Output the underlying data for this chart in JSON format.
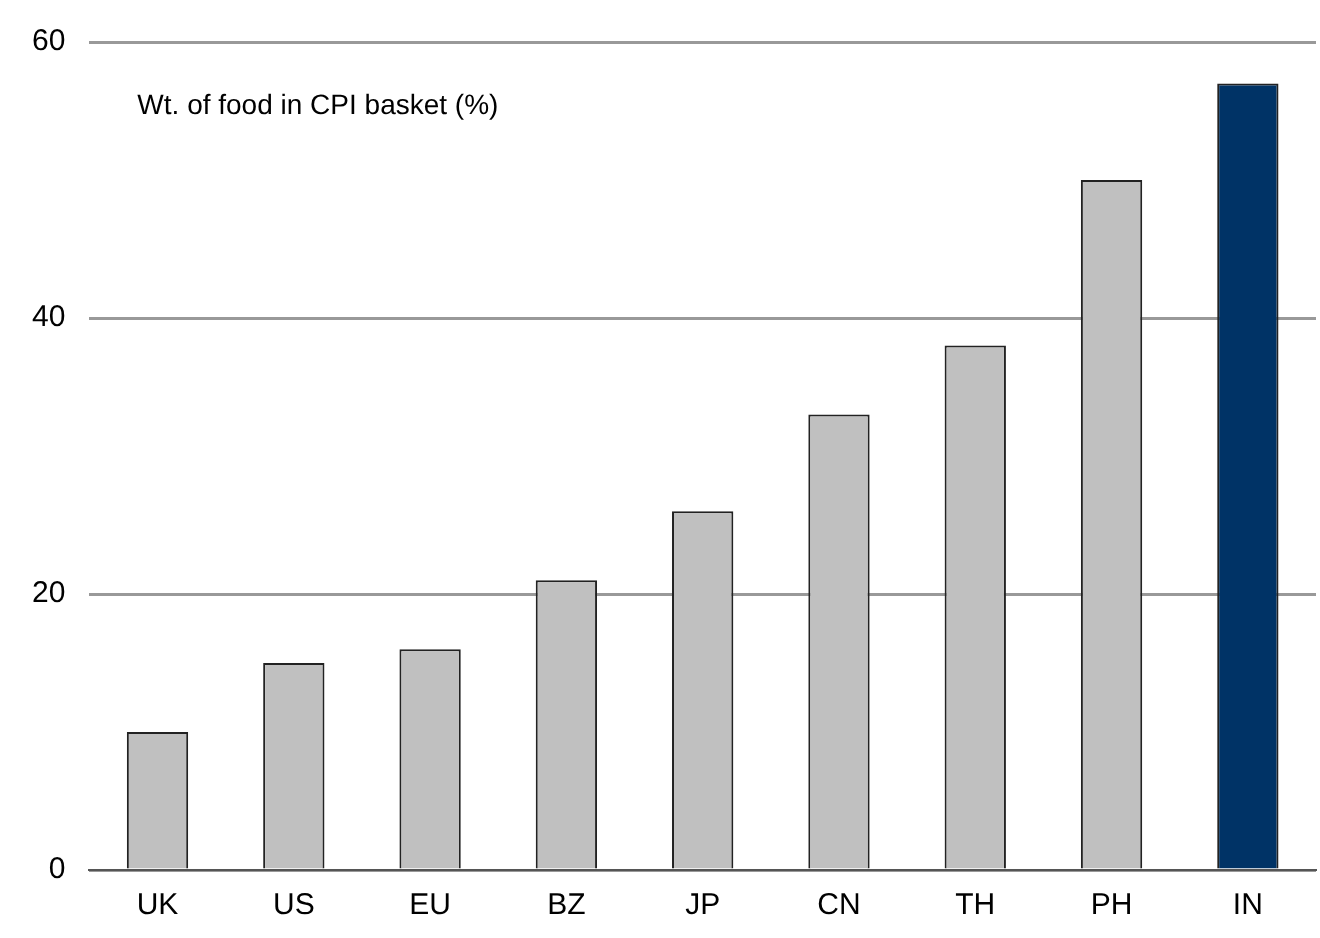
{
  "chart_data": {
    "type": "bar",
    "title": "Wt. of food in CPI basket (%)",
    "categories": [
      "UK",
      "US",
      "EU",
      "BZ",
      "JP",
      "CN",
      "TH",
      "PH",
      "IN"
    ],
    "values": [
      10,
      15,
      16,
      21,
      26,
      33,
      38,
      50,
      57
    ],
    "colors": [
      "#c0c0c0",
      "#c0c0c0",
      "#c0c0c0",
      "#c0c0c0",
      "#c0c0c0",
      "#c0c0c0",
      "#c0c0c0",
      "#c0c0c0",
      "#003366"
    ],
    "ylim": [
      0,
      60
    ],
    "yticks": [
      0,
      20,
      40,
      60
    ],
    "grid": "y",
    "legend": false
  }
}
